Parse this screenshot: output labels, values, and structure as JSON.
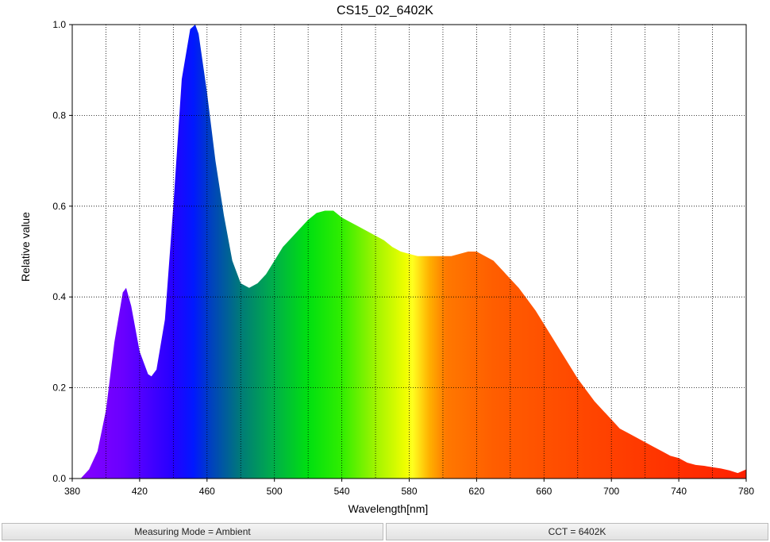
{
  "chart_data": {
    "type": "area",
    "title": "CS15_02_6402K",
    "xlabel": "Wavelength[nm]",
    "ylabel": "Relative value",
    "x": [
      380,
      385,
      390,
      395,
      400,
      405,
      410,
      412,
      415,
      420,
      425,
      427,
      430,
      435,
      440,
      445,
      450,
      453,
      455,
      460,
      465,
      470,
      475,
      480,
      485,
      490,
      495,
      500,
      505,
      510,
      515,
      520,
      525,
      530,
      535,
      540,
      545,
      550,
      555,
      560,
      565,
      570,
      575,
      580,
      585,
      590,
      595,
      600,
      605,
      610,
      615,
      620,
      625,
      630,
      635,
      640,
      645,
      650,
      655,
      660,
      665,
      670,
      675,
      680,
      685,
      690,
      695,
      700,
      705,
      710,
      715,
      720,
      725,
      730,
      735,
      740,
      745,
      750,
      755,
      760,
      765,
      770,
      775,
      780
    ],
    "values": [
      0,
      0,
      0.02,
      0.06,
      0.15,
      0.3,
      0.41,
      0.42,
      0.38,
      0.28,
      0.23,
      0.225,
      0.24,
      0.35,
      0.6,
      0.88,
      0.99,
      1.0,
      0.98,
      0.85,
      0.7,
      0.58,
      0.48,
      0.43,
      0.42,
      0.43,
      0.45,
      0.48,
      0.51,
      0.53,
      0.55,
      0.57,
      0.585,
      0.59,
      0.59,
      0.575,
      0.565,
      0.555,
      0.545,
      0.535,
      0.525,
      0.51,
      0.5,
      0.495,
      0.49,
      0.49,
      0.49,
      0.49,
      0.49,
      0.495,
      0.5,
      0.5,
      0.49,
      0.48,
      0.46,
      0.44,
      0.42,
      0.395,
      0.37,
      0.34,
      0.31,
      0.28,
      0.25,
      0.22,
      0.195,
      0.17,
      0.15,
      0.13,
      0.11,
      0.1,
      0.09,
      0.08,
      0.07,
      0.06,
      0.05,
      0.045,
      0.035,
      0.03,
      0.028,
      0.025,
      0.022,
      0.018,
      0.012,
      0.02
    ],
    "xlim": [
      380,
      780
    ],
    "xticks": [
      380,
      420,
      460,
      500,
      540,
      580,
      620,
      660,
      700,
      740,
      780
    ],
    "x_grid": [
      380,
      400,
      420,
      440,
      460,
      480,
      500,
      520,
      540,
      560,
      580,
      600,
      620,
      640,
      660,
      680,
      700,
      720,
      740,
      760,
      780
    ],
    "ylim": [
      0,
      1
    ],
    "yticks": [
      {
        "value": 0,
        "label": "0.0"
      },
      0.2,
      0.4,
      0.6,
      0.8,
      {
        "value": 1,
        "label": "1.0"
      }
    ],
    "grid": true,
    "gradient": [
      {
        "value": 380,
        "color": "#8a00ff"
      },
      {
        "value": 410,
        "color": "#6a00ff"
      },
      {
        "value": 440,
        "color": "#2400ff"
      },
      {
        "value": 452,
        "color": "#0018ff"
      },
      {
        "value": 462,
        "color": "#0040c0"
      },
      {
        "value": 480,
        "color": "#007a78"
      },
      {
        "value": 500,
        "color": "#00b048"
      },
      {
        "value": 520,
        "color": "#00e010"
      },
      {
        "value": 540,
        "color": "#30ee00"
      },
      {
        "value": 560,
        "color": "#a0f400"
      },
      {
        "value": 578,
        "color": "#f0ff00"
      },
      {
        "value": 582,
        "color": "#ffff20"
      },
      {
        "value": 592,
        "color": "#ffb000"
      },
      {
        "value": 602,
        "color": "#ff7800"
      },
      {
        "value": 630,
        "color": "#ff5e00"
      },
      {
        "value": 690,
        "color": "#ff4400"
      },
      {
        "value": 780,
        "color": "#ff2000"
      }
    ]
  },
  "footer": [
    "Measuring Mode = Ambient",
    "CCT = 6402K"
  ]
}
